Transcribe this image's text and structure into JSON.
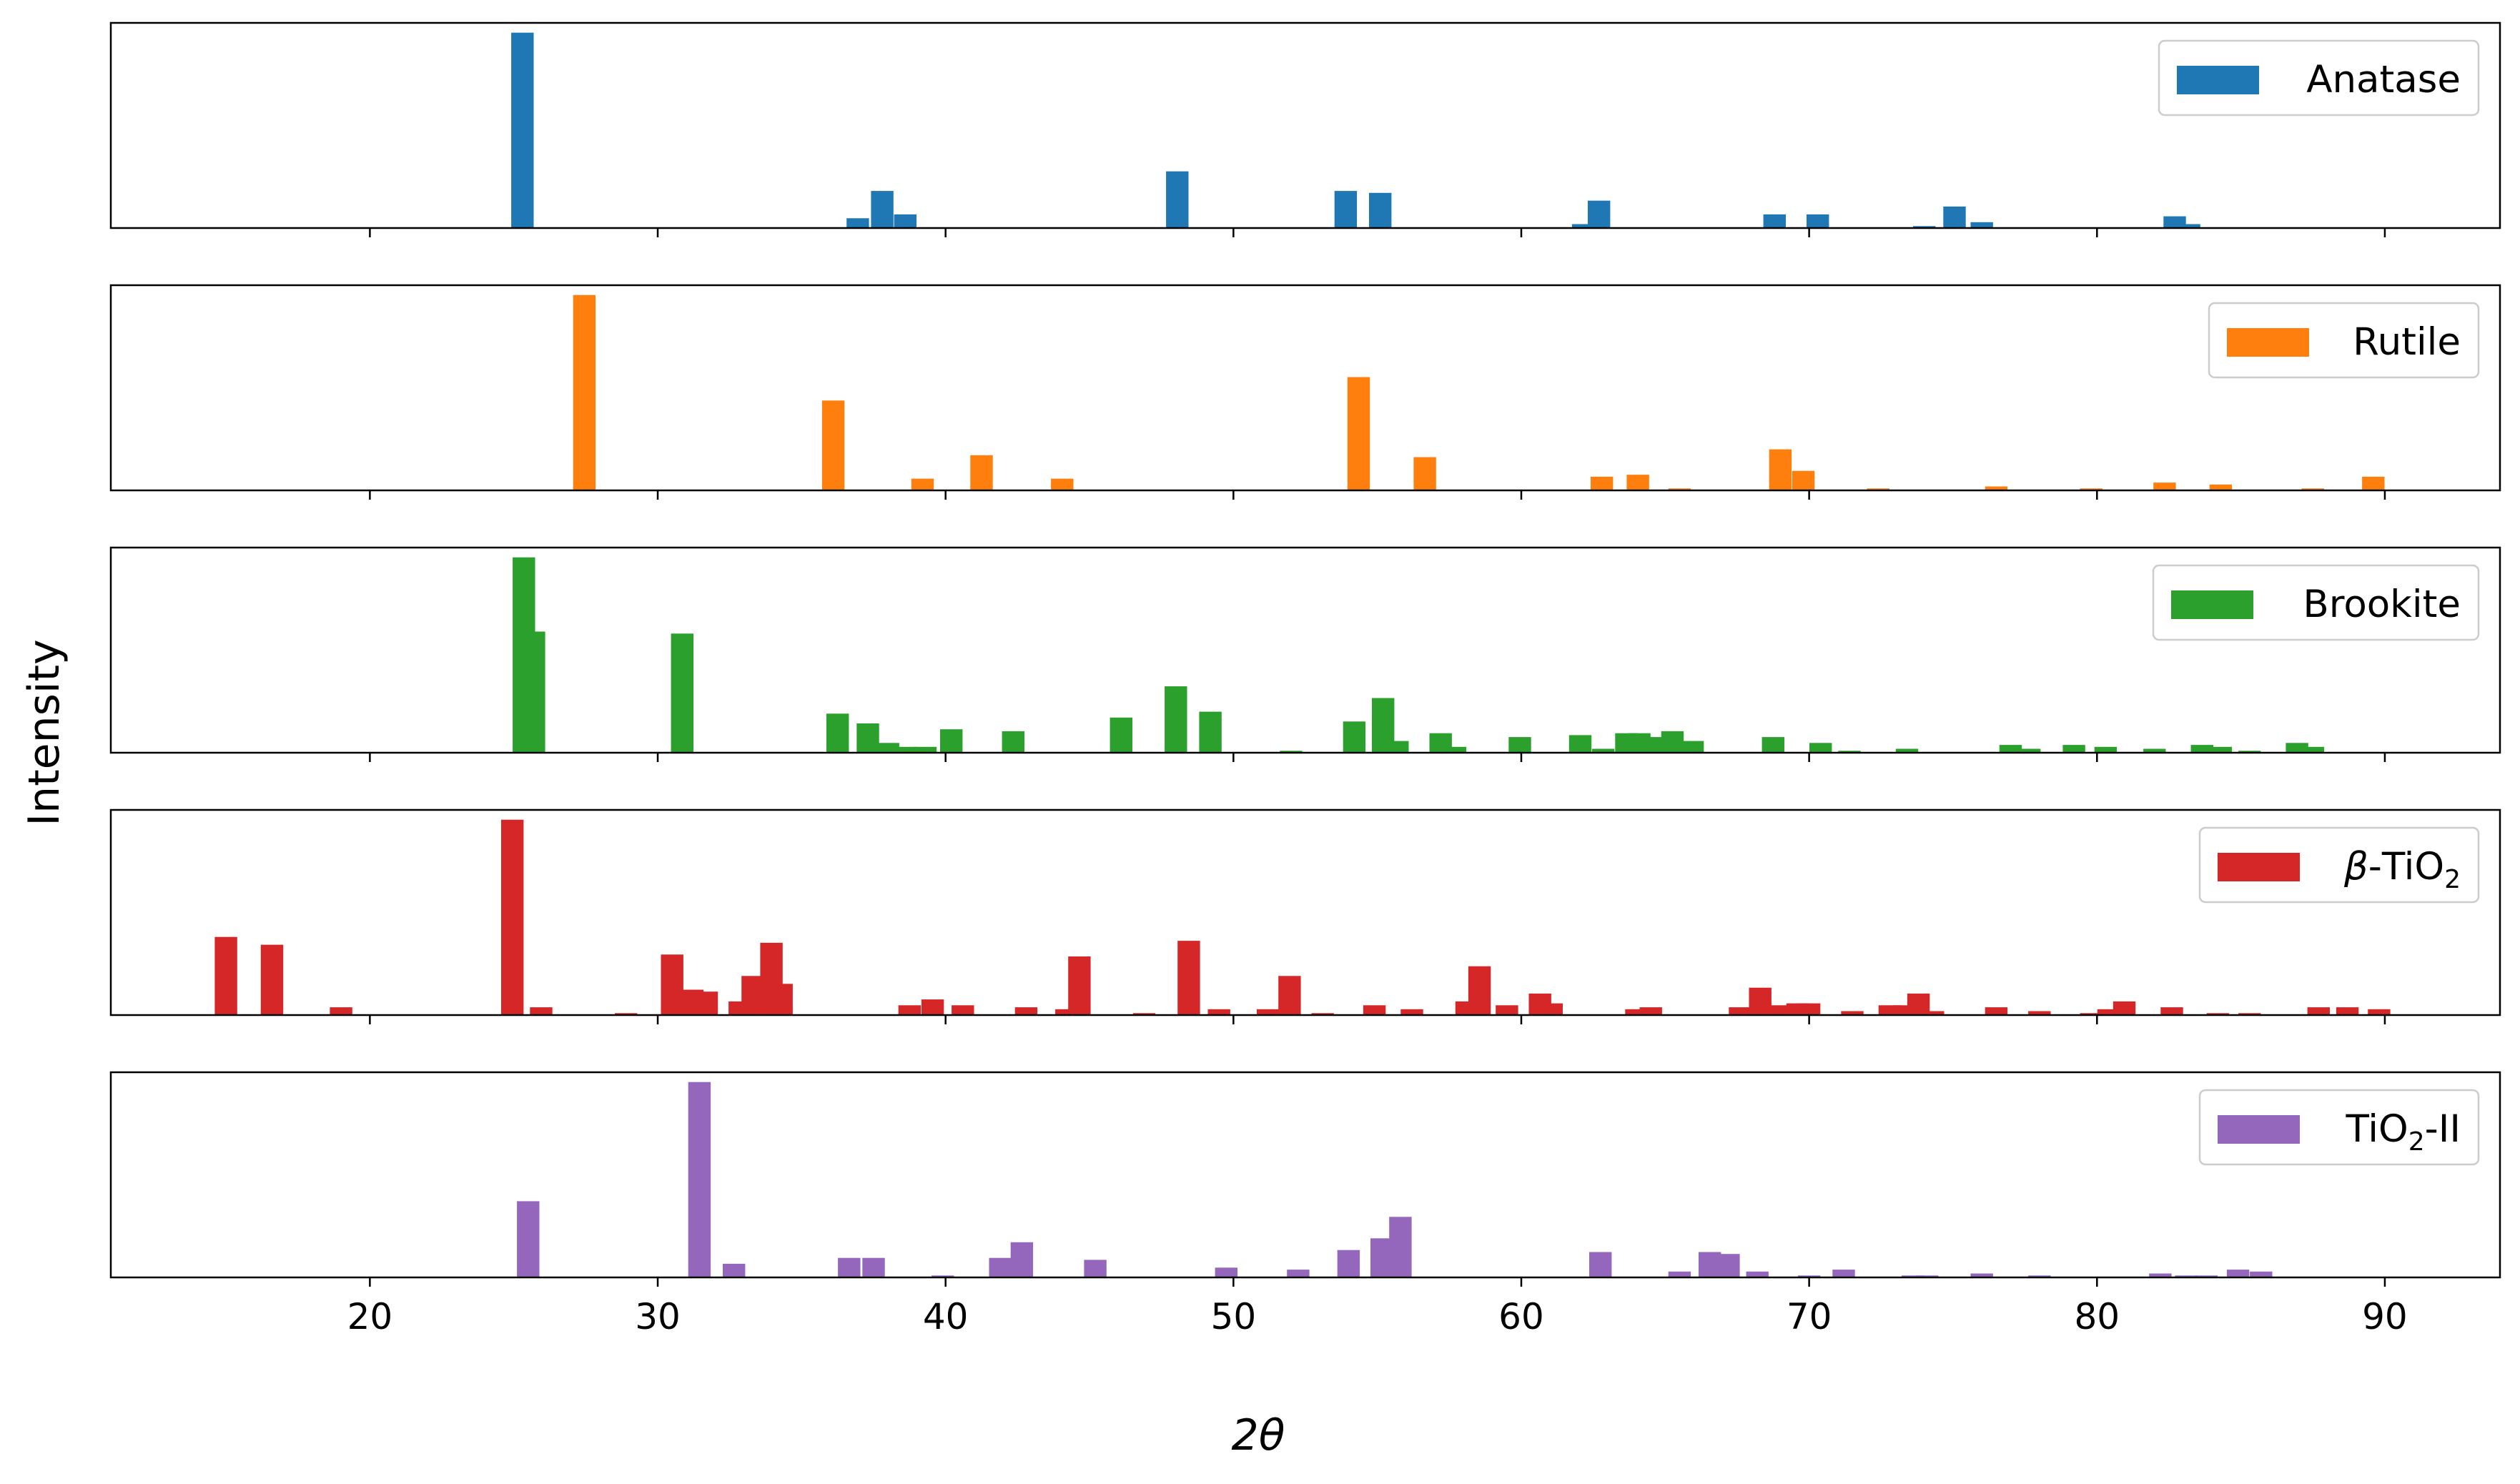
{
  "chart_data": {
    "type": "bar",
    "xlabel": "2θ",
    "ylabel": "Intensity",
    "xlim": [
      11,
      94
    ],
    "xticks": [
      20,
      30,
      40,
      50,
      60,
      70,
      80,
      90
    ],
    "legend_position": "top-right",
    "grid": false,
    "panels": [
      {
        "name": "Anatase",
        "color": "#1f77b4",
        "ymax": 1.05,
        "x": [
          25.3,
          36.95,
          37.8,
          38.6,
          48.05,
          53.9,
          55.1,
          62.15,
          62.7,
          68.8,
          70.3,
          74.0,
          75.05,
          76.0,
          82.7,
          83.2
        ],
        "y": [
          1.0,
          0.05,
          0.19,
          0.07,
          0.29,
          0.19,
          0.18,
          0.02,
          0.14,
          0.07,
          0.07,
          0.01,
          0.11,
          0.03,
          0.06,
          0.02
        ]
      },
      {
        "name": "Rutile",
        "color": "#ff7f0e",
        "ymax": 1.05,
        "x": [
          27.45,
          36.1,
          39.2,
          41.25,
          44.05,
          54.35,
          56.65,
          62.8,
          64.05,
          65.5,
          69.0,
          69.8,
          72.4,
          76.5,
          79.8,
          82.35,
          84.3,
          87.5,
          89.6
        ],
        "y": [
          1.0,
          0.46,
          0.06,
          0.18,
          0.06,
          0.58,
          0.17,
          0.07,
          0.08,
          0.01,
          0.21,
          0.1,
          0.01,
          0.02,
          0.01,
          0.04,
          0.03,
          0.01,
          0.07
        ]
      },
      {
        "name": "Brookite",
        "color": "#2ca02c",
        "ymax": 1.05,
        "x": [
          25.35,
          25.7,
          30.85,
          36.25,
          37.3,
          38.0,
          38.6,
          39.3,
          40.2,
          42.35,
          46.1,
          48.0,
          49.2,
          52.0,
          54.2,
          55.2,
          55.7,
          57.2,
          57.7,
          59.95,
          62.05,
          62.85,
          63.65,
          64.1,
          64.7,
          65.25,
          65.95,
          68.75,
          70.4,
          71.4,
          73.4,
          77.0,
          77.65,
          79.2,
          80.3,
          82.0,
          83.65,
          84.3,
          85.3,
          86.95,
          87.5
        ],
        "y": [
          1.0,
          0.62,
          0.61,
          0.2,
          0.15,
          0.05,
          0.03,
          0.03,
          0.12,
          0.11,
          0.18,
          0.34,
          0.21,
          0.01,
          0.16,
          0.28,
          0.06,
          0.1,
          0.03,
          0.08,
          0.09,
          0.02,
          0.1,
          0.1,
          0.08,
          0.11,
          0.06,
          0.08,
          0.05,
          0.01,
          0.02,
          0.04,
          0.02,
          0.04,
          0.03,
          0.02,
          0.04,
          0.03,
          0.01,
          0.05,
          0.03
        ]
      },
      {
        "name": "β-TiO",
        "name_sub": "2",
        "color": "#d62728",
        "ymax": 1.05,
        "x": [
          15.0,
          16.6,
          19.0,
          24.95,
          25.95,
          28.9,
          30.5,
          31.2,
          31.7,
          32.85,
          33.3,
          33.95,
          34.3,
          38.75,
          39.55,
          40.6,
          42.8,
          44.2,
          44.65,
          46.9,
          48.45,
          49.5,
          51.2,
          51.95,
          53.1,
          54.9,
          56.2,
          58.1,
          58.55,
          59.5,
          60.65,
          61.05,
          64.0,
          64.5,
          67.6,
          68.3,
          69.0,
          69.6,
          70.0,
          71.5,
          72.8,
          73.3,
          73.8,
          74.3,
          76.5,
          78.0,
          79.8,
          80.4,
          80.95,
          82.6,
          84.2,
          85.3,
          87.7,
          88.7,
          89.8
        ],
        "y": [
          0.4,
          0.36,
          0.04,
          1.0,
          0.04,
          0.01,
          0.31,
          0.13,
          0.12,
          0.07,
          0.2,
          0.37,
          0.16,
          0.05,
          0.08,
          0.05,
          0.04,
          0.03,
          0.3,
          0.01,
          0.38,
          0.03,
          0.03,
          0.2,
          0.01,
          0.05,
          0.03,
          0.07,
          0.25,
          0.05,
          0.11,
          0.06,
          0.03,
          0.04,
          0.04,
          0.14,
          0.05,
          0.06,
          0.06,
          0.02,
          0.05,
          0.05,
          0.11,
          0.02,
          0.04,
          0.02,
          0.01,
          0.03,
          0.07,
          0.04,
          0.01,
          0.01,
          0.04,
          0.04,
          0.03
        ]
      },
      {
        "name": "TiO",
        "name_sub": "2",
        "name_suffix": "-II",
        "color": "#9467bd",
        "ymax": 1.05,
        "x": [
          25.5,
          31.45,
          32.65,
          36.65,
          37.5,
          39.9,
          41.9,
          42.65,
          45.2,
          49.75,
          52.25,
          54.0,
          55.15,
          55.8,
          62.75,
          65.5,
          66.55,
          67.2,
          68.2,
          70.0,
          71.2,
          73.6,
          74.1,
          76.0,
          78.0,
          82.2,
          83.1,
          83.8,
          84.9,
          85.7
        ],
        "y": [
          0.39,
          1.0,
          0.07,
          0.1,
          0.1,
          0.01,
          0.1,
          0.18,
          0.09,
          0.05,
          0.04,
          0.14,
          0.2,
          0.31,
          0.13,
          0.03,
          0.13,
          0.12,
          0.03,
          0.01,
          0.04,
          0.01,
          0.01,
          0.02,
          0.01,
          0.02,
          0.01,
          0.01,
          0.04,
          0.03
        ]
      }
    ]
  }
}
